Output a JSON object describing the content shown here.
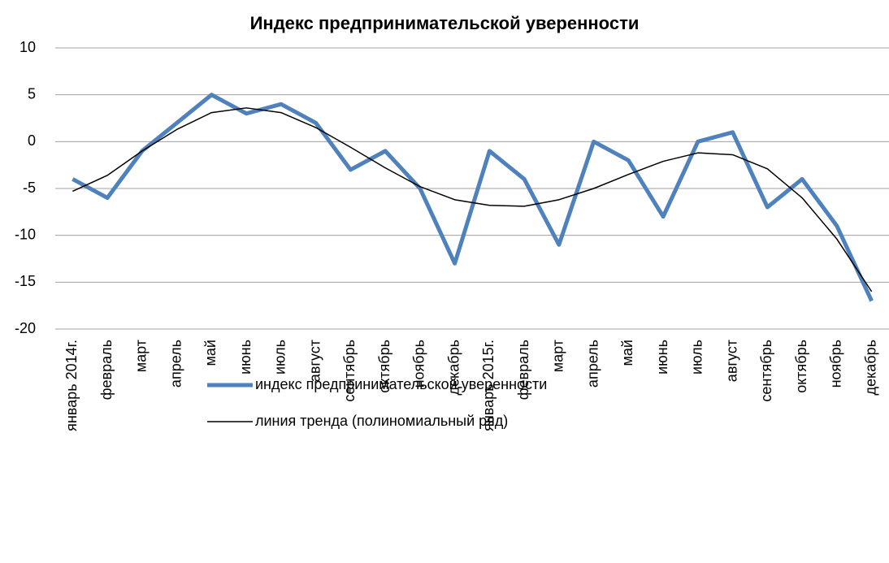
{
  "chart_data": {
    "type": "line",
    "title": "Индекс предпринимательской уверенности",
    "categories": [
      "январь 2014г.",
      "февраль",
      "март",
      "апрель",
      "май",
      "июнь",
      "июль",
      "август",
      "сентябрь",
      "октябрь",
      "ноябрь",
      "декабрь",
      "январь 2015г.",
      "февраль",
      "март",
      "апрель",
      "май",
      "июнь",
      "июль",
      "август",
      "сентябрь",
      "октябрь",
      "ноябрь",
      "декабрь"
    ],
    "series": [
      {
        "name": "индекс предпринимательской уверенности",
        "color": "#4f81bd",
        "values": [
          -4,
          -6,
          -1,
          2,
          5,
          3,
          4,
          2,
          -3,
          -1,
          -5,
          -13,
          -1,
          -4,
          -11,
          0,
          -2,
          -8,
          0,
          1,
          -7,
          -4,
          -9,
          -17
        ]
      },
      {
        "name": "линия тренда (полиномиальный ряд)",
        "color": "#000000",
        "values": [
          -5.3,
          -3.6,
          -1,
          1.3,
          3.1,
          3.6,
          3.1,
          1.5,
          -0.6,
          -2.8,
          -4.8,
          -6.2,
          -6.8,
          -6.9,
          -6.2,
          -5,
          -3.5,
          -2.1,
          -1.2,
          -1.4,
          -2.9,
          -6,
          -10.4,
          -16
        ]
      }
    ],
    "ylim": [
      -20,
      10
    ],
    "yticks": [
      -20,
      -15,
      -10,
      -5,
      0,
      5,
      10
    ],
    "grid": true
  }
}
